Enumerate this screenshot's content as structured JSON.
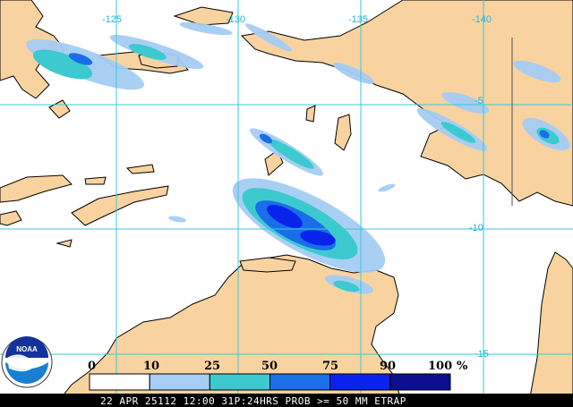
{
  "map": {
    "longitude_labels": [
      "-125",
      "-130",
      "-135",
      "-140"
    ],
    "latitude_labels": [
      "-5",
      "-10",
      "-15"
    ]
  },
  "legend": {
    "tick_labels": [
      "0",
      "10",
      "25",
      "50",
      "75",
      "90",
      "100",
      "%"
    ],
    "bins": [
      {
        "from": 0,
        "to": 10,
        "color": "#ffffff"
      },
      {
        "from": 10,
        "to": 25,
        "color": "#a6cdf4"
      },
      {
        "from": 25,
        "to": 50,
        "color": "#3ccad0"
      },
      {
        "from": 50,
        "to": 75,
        "color": "#1a6ee8"
      },
      {
        "from": 75,
        "to": 90,
        "color": "#0a23ec"
      },
      {
        "from": 90,
        "to": 100,
        "color": "#0b0f90"
      }
    ]
  },
  "footer": {
    "text": "22 APR 25112 12:00 31P:24HRS PROB >= 50 MM ETRAP"
  },
  "logo": {
    "text": "NOAA"
  },
  "colors": {
    "land": "#f8d3a0",
    "ocean": "#ffffff",
    "grid": "#3bc8d8",
    "coast": "#000000",
    "footer_bg": "#000000"
  }
}
